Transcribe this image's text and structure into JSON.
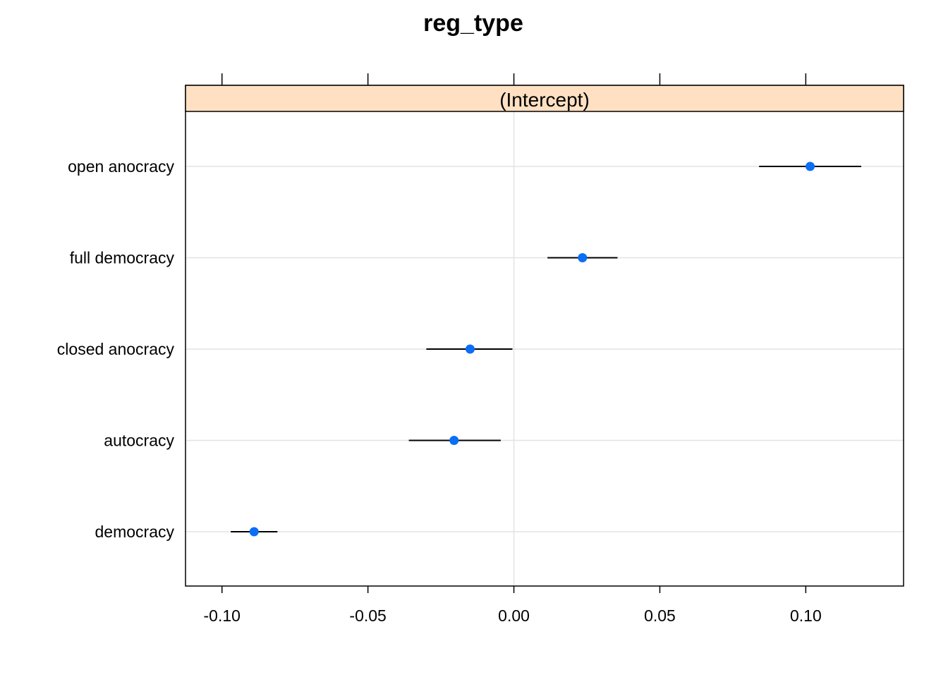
{
  "chart_data": {
    "type": "dotplot",
    "title": "reg_type",
    "panel": "(Intercept)",
    "xlabel": "",
    "ylabel": "",
    "xlim": [
      -0.1125,
      0.1335
    ],
    "x_ticks": [
      -0.1,
      -0.05,
      0.0,
      0.05,
      0.1
    ],
    "x_tick_labels": [
      "-0.10",
      "-0.05",
      "0.00",
      "0.05",
      "0.10"
    ],
    "grid": true,
    "point_color": "#0b6ef5",
    "strip_color": "#ffe0c2",
    "categories": [
      "open anocracy",
      "full democracy",
      "closed anocracy",
      "autocracy",
      "democracy"
    ],
    "estimates": [
      0.1015,
      0.0235,
      -0.015,
      -0.0205,
      -0.089
    ],
    "lower": [
      0.084,
      0.0115,
      -0.03,
      -0.036,
      -0.097
    ],
    "upper": [
      0.119,
      0.0355,
      -0.0005,
      -0.0045,
      -0.081
    ]
  }
}
